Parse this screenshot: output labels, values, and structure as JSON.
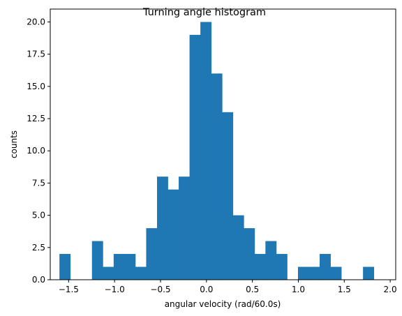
{
  "chart_data": {
    "type": "bar",
    "title": "Turning angle histogram",
    "xlabel": "angular velocity (rad/60.0s)",
    "ylabel": "counts",
    "xlim": [
      -1.7,
      2.06
    ],
    "ylim": [
      0,
      21
    ],
    "grid": false,
    "color": "#1f77b4",
    "x_ticks": [
      -1.5,
      -1.0,
      -0.5,
      0.0,
      0.5,
      1.0,
      1.5,
      2.0
    ],
    "x_tick_labels": [
      "−1.5",
      "−1.0",
      "−0.5",
      "0.0",
      "0.5",
      "1.0",
      "1.5",
      "2.0"
    ],
    "y_ticks": [
      0,
      2.5,
      5,
      7.5,
      10,
      12.5,
      15,
      17.5,
      20
    ],
    "y_tick_labels": [
      "0.0",
      "2.5",
      "5.0",
      "7.5",
      "10.0",
      "12.5",
      "15.0",
      "17.5",
      "20.0"
    ],
    "bin_edges": [
      -1.6,
      -1.482,
      -1.364,
      -1.246,
      -1.128,
      -1.01,
      -0.892,
      -0.774,
      -0.656,
      -0.538,
      -0.42,
      -0.302,
      -0.184,
      -0.066,
      0.052,
      0.17,
      0.288,
      0.406,
      0.524,
      0.642,
      0.76,
      0.878,
      0.996,
      1.114,
      1.232,
      1.35,
      1.468,
      1.586,
      1.704,
      1.822,
      1.94
    ],
    "counts": [
      2,
      0,
      0,
      3,
      1,
      2,
      2,
      1,
      4,
      8,
      7,
      8,
      19,
      20,
      16,
      13,
      5,
      4,
      2,
      3,
      2,
      0,
      1,
      1,
      2,
      1,
      0,
      0,
      1,
      0
    ]
  }
}
